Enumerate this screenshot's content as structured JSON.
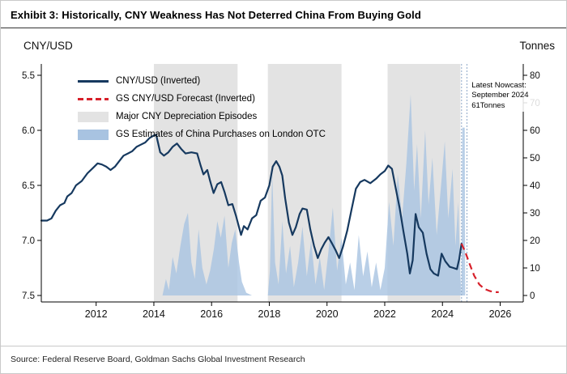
{
  "page": {
    "title": "Exhibit 3: Historically, CNY Weakness Has Not Deterred China From Buying Gold",
    "source": "Source: Federal Reserve Board, Goldman Sachs Global Investment Research"
  },
  "chart_data": {
    "type": "line",
    "subtype": "dual-axis line + area + shaded bands",
    "title": "Exhibit 3: Historically, CNY Weakness Has Not Deterred China From Buying Gold",
    "left_axis": {
      "label": "CNY/USD",
      "inverted": true,
      "ticks": [
        5.5,
        6.0,
        6.5,
        7.0,
        7.5
      ],
      "tick_labels": [
        "5.5",
        "6.0",
        "6.5",
        "7.0",
        "7.5"
      ]
    },
    "right_axis": {
      "label": "Tonnes",
      "ticks": [
        0,
        10,
        20,
        30,
        40,
        50,
        60,
        70,
        80
      ],
      "range": [
        0,
        80
      ]
    },
    "x_axis": {
      "ticks": [
        2012,
        2014,
        2016,
        2018,
        2020,
        2022,
        2024,
        2026
      ],
      "range": [
        2010.1,
        2026.8
      ]
    },
    "legend": [
      {
        "label": "CNY/USD (Inverted)",
        "swatch": "line",
        "color": "#16395f"
      },
      {
        "label": "GS CNY/USD Forecast (Inverted)",
        "swatch": "dashed-line",
        "color": "#d7202a"
      },
      {
        "label": "Major CNY Depreciation Episodes",
        "swatch": "box",
        "color": "#e3e3e3"
      },
      {
        "label": "GS Estimates of China Purchases on London OTC",
        "swatch": "box",
        "color": "#a8c3e1"
      }
    ],
    "episodes": [
      [
        2014.0,
        2016.9
      ],
      [
        2017.95,
        2020.5
      ],
      [
        2022.1,
        2024.62
      ]
    ],
    "nowcast": {
      "x": 2024.73,
      "label_lines": [
        "Latest Nowcast:",
        "September 2024",
        "61Tonnes"
      ],
      "value_tonnes": 61
    },
    "colors": {
      "episode": "#e3e3e3",
      "nowcast_line": "#8fa9c9",
      "axis": "#000000"
    },
    "series": {
      "cny": {
        "name": "CNY/USD (Inverted)",
        "kind": "line",
        "axis": "left",
        "color": "#16395f",
        "points": [
          [
            2010.1,
            6.82
          ],
          [
            2010.3,
            6.82
          ],
          [
            2010.45,
            6.8
          ],
          [
            2010.6,
            6.73
          ],
          [
            2010.75,
            6.68
          ],
          [
            2010.9,
            6.66
          ],
          [
            2011.0,
            6.6
          ],
          [
            2011.15,
            6.57
          ],
          [
            2011.3,
            6.5
          ],
          [
            2011.5,
            6.46
          ],
          [
            2011.7,
            6.39
          ],
          [
            2011.9,
            6.34
          ],
          [
            2012.05,
            6.3
          ],
          [
            2012.2,
            6.31
          ],
          [
            2012.35,
            6.33
          ],
          [
            2012.5,
            6.36
          ],
          [
            2012.65,
            6.33
          ],
          [
            2012.8,
            6.28
          ],
          [
            2012.95,
            6.23
          ],
          [
            2013.1,
            6.21
          ],
          [
            2013.25,
            6.19
          ],
          [
            2013.4,
            6.15
          ],
          [
            2013.55,
            6.13
          ],
          [
            2013.7,
            6.11
          ],
          [
            2013.85,
            6.07
          ],
          [
            2013.98,
            6.05
          ],
          [
            2014.08,
            6.04
          ],
          [
            2014.22,
            6.2
          ],
          [
            2014.35,
            6.23
          ],
          [
            2014.5,
            6.2
          ],
          [
            2014.65,
            6.15
          ],
          [
            2014.8,
            6.12
          ],
          [
            2014.95,
            6.17
          ],
          [
            2015.1,
            6.21
          ],
          [
            2015.3,
            6.2
          ],
          [
            2015.5,
            6.21
          ],
          [
            2015.62,
            6.32
          ],
          [
            2015.72,
            6.4
          ],
          [
            2015.85,
            6.36
          ],
          [
            2015.95,
            6.46
          ],
          [
            2016.07,
            6.57
          ],
          [
            2016.2,
            6.49
          ],
          [
            2016.33,
            6.47
          ],
          [
            2016.45,
            6.56
          ],
          [
            2016.58,
            6.68
          ],
          [
            2016.72,
            6.67
          ],
          [
            2016.85,
            6.78
          ],
          [
            2016.95,
            6.88
          ],
          [
            2017.02,
            6.95
          ],
          [
            2017.12,
            6.87
          ],
          [
            2017.25,
            6.9
          ],
          [
            2017.4,
            6.8
          ],
          [
            2017.55,
            6.77
          ],
          [
            2017.7,
            6.64
          ],
          [
            2017.85,
            6.61
          ],
          [
            2018.0,
            6.5
          ],
          [
            2018.12,
            6.33
          ],
          [
            2018.24,
            6.28
          ],
          [
            2018.35,
            6.33
          ],
          [
            2018.45,
            6.41
          ],
          [
            2018.55,
            6.62
          ],
          [
            2018.68,
            6.84
          ],
          [
            2018.8,
            6.95
          ],
          [
            2018.92,
            6.88
          ],
          [
            2019.05,
            6.76
          ],
          [
            2019.15,
            6.71
          ],
          [
            2019.3,
            6.72
          ],
          [
            2019.42,
            6.9
          ],
          [
            2019.55,
            7.05
          ],
          [
            2019.68,
            7.16
          ],
          [
            2019.8,
            7.08
          ],
          [
            2019.92,
            7.02
          ],
          [
            2020.05,
            6.97
          ],
          [
            2020.18,
            7.03
          ],
          [
            2020.3,
            7.09
          ],
          [
            2020.42,
            7.16
          ],
          [
            2020.55,
            7.06
          ],
          [
            2020.7,
            6.91
          ],
          [
            2020.85,
            6.72
          ],
          [
            2021.0,
            6.53
          ],
          [
            2021.15,
            6.47
          ],
          [
            2021.3,
            6.45
          ],
          [
            2021.5,
            6.48
          ],
          [
            2021.7,
            6.44
          ],
          [
            2021.85,
            6.4
          ],
          [
            2022.0,
            6.37
          ],
          [
            2022.12,
            6.32
          ],
          [
            2022.25,
            6.35
          ],
          [
            2022.4,
            6.55
          ],
          [
            2022.52,
            6.71
          ],
          [
            2022.65,
            6.92
          ],
          [
            2022.78,
            7.12
          ],
          [
            2022.87,
            7.3
          ],
          [
            2022.97,
            7.18
          ],
          [
            2023.07,
            6.76
          ],
          [
            2023.18,
            6.88
          ],
          [
            2023.32,
            6.93
          ],
          [
            2023.45,
            7.12
          ],
          [
            2023.58,
            7.26
          ],
          [
            2023.7,
            7.3
          ],
          [
            2023.85,
            7.32
          ],
          [
            2023.97,
            7.12
          ],
          [
            2024.1,
            7.19
          ],
          [
            2024.25,
            7.24
          ],
          [
            2024.38,
            7.25
          ],
          [
            2024.5,
            7.26
          ],
          [
            2024.58,
            7.17
          ],
          [
            2024.66,
            7.03
          ]
        ]
      },
      "forecast": {
        "name": "GS CNY/USD Forecast (Inverted)",
        "kind": "dashed-line",
        "axis": "left",
        "color": "#d7202a",
        "points": [
          [
            2024.66,
            7.03
          ],
          [
            2024.8,
            7.11
          ],
          [
            2024.95,
            7.22
          ],
          [
            2025.1,
            7.32
          ],
          [
            2025.28,
            7.4
          ],
          [
            2025.45,
            7.44
          ],
          [
            2025.65,
            7.46
          ],
          [
            2025.8,
            7.47
          ],
          [
            2025.95,
            7.47
          ]
        ]
      },
      "purchases": {
        "name": "GS Estimates of China Purchases on London OTC",
        "kind": "area",
        "axis": "right",
        "color": "#a8c3e1",
        "points": [
          [
            2014.3,
            0
          ],
          [
            2014.42,
            6
          ],
          [
            2014.52,
            2
          ],
          [
            2014.65,
            14
          ],
          [
            2014.78,
            8
          ],
          [
            2014.92,
            18
          ],
          [
            2015.05,
            26
          ],
          [
            2015.18,
            30
          ],
          [
            2015.3,
            12
          ],
          [
            2015.42,
            6
          ],
          [
            2015.55,
            24
          ],
          [
            2015.68,
            10
          ],
          [
            2015.82,
            4
          ],
          [
            2015.95,
            9
          ],
          [
            2016.08,
            17
          ],
          [
            2016.2,
            27
          ],
          [
            2016.32,
            21
          ],
          [
            2016.45,
            29
          ],
          [
            2016.58,
            10
          ],
          [
            2016.7,
            19
          ],
          [
            2016.82,
            24
          ],
          [
            2016.95,
            12
          ],
          [
            2017.05,
            5
          ],
          [
            2017.2,
            1
          ],
          [
            2017.4,
            0
          ],
          [
            2017.95,
            0
          ],
          [
            2018.02,
            9
          ],
          [
            2018.1,
            45
          ],
          [
            2018.2,
            12
          ],
          [
            2018.32,
            4
          ],
          [
            2018.45,
            27
          ],
          [
            2018.58,
            8
          ],
          [
            2018.72,
            18
          ],
          [
            2018.85,
            3
          ],
          [
            2019.0,
            12
          ],
          [
            2019.15,
            25
          ],
          [
            2019.3,
            7
          ],
          [
            2019.45,
            20
          ],
          [
            2019.6,
            4
          ],
          [
            2019.75,
            14
          ],
          [
            2019.9,
            2
          ],
          [
            2020.05,
            16
          ],
          [
            2020.2,
            32
          ],
          [
            2020.35,
            9
          ],
          [
            2020.5,
            21
          ],
          [
            2020.65,
            4
          ],
          [
            2020.8,
            12
          ],
          [
            2020.95,
            2
          ],
          [
            2021.1,
            22
          ],
          [
            2021.25,
            7
          ],
          [
            2021.4,
            16
          ],
          [
            2021.55,
            3
          ],
          [
            2021.7,
            12
          ],
          [
            2021.85,
            2
          ],
          [
            2022.0,
            10
          ],
          [
            2022.15,
            34
          ],
          [
            2022.3,
            18
          ],
          [
            2022.45,
            44
          ],
          [
            2022.6,
            28
          ],
          [
            2022.75,
            48
          ],
          [
            2022.9,
            73
          ],
          [
            2023.02,
            38
          ],
          [
            2023.12,
            55
          ],
          [
            2023.25,
            28
          ],
          [
            2023.4,
            60
          ],
          [
            2023.52,
            33
          ],
          [
            2023.65,
            50
          ],
          [
            2023.8,
            22
          ],
          [
            2023.95,
            40
          ],
          [
            2024.08,
            56
          ],
          [
            2024.2,
            28
          ],
          [
            2024.35,
            46
          ],
          [
            2024.45,
            18
          ],
          [
            2024.55,
            34
          ],
          [
            2024.62,
            8
          ],
          [
            2024.66,
            0
          ],
          [
            2024.69,
            61
          ],
          [
            2024.77,
            61
          ],
          [
            2024.79,
            0
          ]
        ]
      }
    }
  }
}
